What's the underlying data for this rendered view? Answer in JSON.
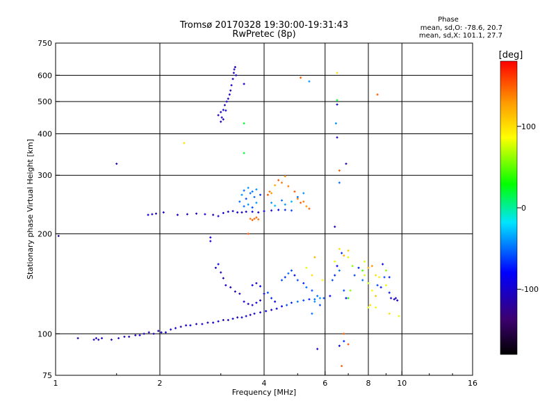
{
  "chart_data": {
    "type": "scatter",
    "title": "Tromsø 20170328 19:30:00-19:31:43",
    "subtitle": "RwPretec (8p)",
    "xlabel": "Frequency [MHz]",
    "ylabel": "Stationary phase Virtual Height [km]",
    "x_scale": "log",
    "y_scale": "log",
    "xlim": [
      1,
      16
    ],
    "ylim": [
      75,
      750
    ],
    "x_ticks": [
      {
        "v": 1,
        "label": "1"
      },
      {
        "v": 2,
        "label": "2"
      },
      {
        "v": 4,
        "label": "4"
      },
      {
        "v": 6,
        "label": "6"
      },
      {
        "v": 8,
        "label": "8"
      },
      {
        "v": 10,
        "label": "10"
      },
      {
        "v": 16,
        "label": "16"
      }
    ],
    "x_gridlines": [
      2,
      4,
      6,
      8,
      10
    ],
    "y_ticks": [
      {
        "v": 75,
        "label": "75"
      },
      {
        "v": 100,
        "label": "100"
      },
      {
        "v": 200,
        "label": "200"
      },
      {
        "v": 300,
        "label": "300"
      },
      {
        "v": 400,
        "label": "400"
      },
      {
        "v": 500,
        "label": "500"
      },
      {
        "v": 600,
        "label": "600"
      },
      {
        "v": 750,
        "label": "750"
      }
    ],
    "y_gridlines": [
      100,
      200,
      300,
      400,
      500,
      600
    ],
    "grid": true,
    "legend": {
      "phase_label": "Phase",
      "line_o": "mean, sd,O: -78.6, 20.7",
      "line_x": "mean, sd,X: 101.1, 27.7"
    },
    "colorbar": {
      "label": "[deg]",
      "range": [
        -180,
        180
      ],
      "ticks": [
        {
          "v": 100,
          "label": "100"
        },
        {
          "v": 0,
          "label": "0"
        },
        {
          "v": -100,
          "label": "-100"
        }
      ],
      "colors": [
        "#000000",
        "#4b0082",
        "#0000ff",
        "#00ffff",
        "#00ff00",
        "#ffff00",
        "#ff8000",
        "#ff0000"
      ]
    },
    "points": [
      [
        1.02,
        197,
        -110
      ],
      [
        1.16,
        97,
        -110
      ],
      [
        1.29,
        96,
        -110
      ],
      [
        1.31,
        97,
        -100
      ],
      [
        1.33,
        96,
        -110
      ],
      [
        1.36,
        97,
        -100
      ],
      [
        1.45,
        96,
        -110
      ],
      [
        1.52,
        97,
        -100
      ],
      [
        1.58,
        98,
        -110
      ],
      [
        1.63,
        98,
        -100
      ],
      [
        1.7,
        99,
        -110
      ],
      [
        1.75,
        99,
        -100
      ],
      [
        1.8,
        100,
        -110
      ],
      [
        1.86,
        101,
        -100
      ],
      [
        1.92,
        100,
        -110
      ],
      [
        1.98,
        102,
        -110
      ],
      [
        2.02,
        101,
        -100
      ],
      [
        2.08,
        101,
        -100
      ],
      [
        2.15,
        103,
        -90
      ],
      [
        2.22,
        104,
        -100
      ],
      [
        2.3,
        105,
        -110
      ],
      [
        2.38,
        106,
        -100
      ],
      [
        2.45,
        106,
        -90
      ],
      [
        2.55,
        107,
        -110
      ],
      [
        2.65,
        107,
        -100
      ],
      [
        2.75,
        108,
        -110
      ],
      [
        2.85,
        108,
        -100
      ],
      [
        2.95,
        109,
        -90
      ],
      [
        3.05,
        110,
        -110
      ],
      [
        3.15,
        110,
        -100
      ],
      [
        3.25,
        111,
        -100
      ],
      [
        3.35,
        112,
        -110
      ],
      [
        3.45,
        112,
        -90
      ],
      [
        3.55,
        113,
        -100
      ],
      [
        3.65,
        114,
        -110
      ],
      [
        3.75,
        115,
        -100
      ],
      [
        3.9,
        116,
        -100
      ],
      [
        4.05,
        117,
        -90
      ],
      [
        4.2,
        118,
        -100
      ],
      [
        4.35,
        119,
        -90
      ],
      [
        4.5,
        121,
        -80
      ],
      [
        4.65,
        122,
        -60
      ],
      [
        4.8,
        124,
        -70
      ],
      [
        5.0,
        125,
        -50
      ],
      [
        5.2,
        126,
        -60
      ],
      [
        5.4,
        127,
        -70
      ],
      [
        5.6,
        127,
        -50
      ],
      [
        5.8,
        128,
        -40
      ],
      [
        5.95,
        128,
        -60
      ],
      [
        1.85,
        228,
        -100
      ],
      [
        1.9,
        229,
        -100
      ],
      [
        1.95,
        230,
        -110
      ],
      [
        2.05,
        232,
        -100
      ],
      [
        2.25,
        228,
        -100
      ],
      [
        2.4,
        229,
        -110
      ],
      [
        2.55,
        230,
        -100
      ],
      [
        2.7,
        229,
        -100
      ],
      [
        2.85,
        228,
        -110
      ],
      [
        2.95,
        226,
        -100
      ],
      [
        3.05,
        231,
        -100
      ],
      [
        3.15,
        233,
        -100
      ],
      [
        3.25,
        234,
        -110
      ],
      [
        3.35,
        232,
        -90
      ],
      [
        3.45,
        232,
        -100
      ],
      [
        3.55,
        233,
        -100
      ],
      [
        3.7,
        233,
        -90
      ],
      [
        3.85,
        232,
        -100
      ],
      [
        4.0,
        234,
        -90
      ],
      [
        4.2,
        235,
        -100
      ],
      [
        4.4,
        236,
        -90
      ],
      [
        4.6,
        236,
        -70
      ],
      [
        4.8,
        235,
        -60
      ],
      [
        3.4,
        250,
        -50
      ],
      [
        3.45,
        262,
        -40
      ],
      [
        3.5,
        270,
        -50
      ],
      [
        3.55,
        255,
        -60
      ],
      [
        3.6,
        245,
        -40
      ],
      [
        3.65,
        265,
        -50
      ],
      [
        3.7,
        240,
        -60
      ],
      [
        3.75,
        258,
        -50
      ],
      [
        3.8,
        248,
        -40
      ],
      [
        3.9,
        262,
        -60
      ],
      [
        3.5,
        242,
        -50
      ],
      [
        3.6,
        275,
        -40
      ],
      [
        3.7,
        268,
        -50
      ],
      [
        3.8,
        272,
        -40
      ],
      [
        3.65,
        222,
        140
      ],
      [
        3.7,
        220,
        150
      ],
      [
        3.75,
        222,
        145
      ],
      [
        3.8,
        224,
        150
      ],
      [
        3.85,
        221,
        140
      ],
      [
        4.1,
        262,
        150
      ],
      [
        4.15,
        268,
        140
      ],
      [
        4.2,
        265,
        130
      ],
      [
        4.3,
        280,
        120
      ],
      [
        4.4,
        290,
        150
      ],
      [
        4.5,
        285,
        140
      ],
      [
        4.6,
        298,
        130
      ],
      [
        4.7,
        278,
        140
      ],
      [
        4.9,
        268,
        150
      ],
      [
        5.0,
        255,
        140
      ],
      [
        5.1,
        248,
        150
      ],
      [
        5.2,
        250,
        140
      ],
      [
        5.3,
        242,
        130
      ],
      [
        5.4,
        238,
        150
      ],
      [
        4.2,
        248,
        -40
      ],
      [
        4.3,
        243,
        -30
      ],
      [
        4.5,
        252,
        -50
      ],
      [
        4.6,
        245,
        -40
      ],
      [
        4.8,
        250,
        -30
      ],
      [
        5.0,
        258,
        -50
      ],
      [
        5.2,
        265,
        -40
      ],
      [
        2.95,
        455,
        -110
      ],
      [
        3.0,
        465,
        -100
      ],
      [
        3.02,
        448,
        -110
      ],
      [
        3.05,
        472,
        -100
      ],
      [
        3.08,
        488,
        -110
      ],
      [
        3.12,
        500,
        -100
      ],
      [
        3.15,
        510,
        -110
      ],
      [
        3.18,
        525,
        -100
      ],
      [
        3.2,
        540,
        -110
      ],
      [
        3.22,
        560,
        -100
      ],
      [
        3.25,
        585,
        -110
      ],
      [
        3.27,
        610,
        -100
      ],
      [
        3.28,
        625,
        -110
      ],
      [
        3.3,
        635,
        -100
      ],
      [
        3.32,
        600,
        -100
      ],
      [
        3.0,
        435,
        -110
      ],
      [
        3.05,
        442,
        -110
      ],
      [
        3.1,
        470,
        -100
      ],
      [
        3.0,
        153,
        -100
      ],
      [
        3.05,
        147,
        -110
      ],
      [
        3.1,
        140,
        -100
      ],
      [
        3.2,
        138,
        -110
      ],
      [
        3.3,
        134,
        -100
      ],
      [
        3.4,
        132,
        -110
      ],
      [
        2.9,
        158,
        -100
      ],
      [
        2.95,
        162,
        -90
      ],
      [
        3.5,
        125,
        -100
      ],
      [
        3.6,
        123,
        -110
      ],
      [
        3.7,
        122,
        -100
      ],
      [
        3.8,
        124,
        -90
      ],
      [
        3.9,
        126,
        -100
      ],
      [
        3.7,
        140,
        -90
      ],
      [
        3.8,
        142,
        -100
      ],
      [
        3.9,
        139,
        -80
      ],
      [
        4.0,
        132,
        -90
      ],
      [
        4.1,
        133,
        -60
      ],
      [
        4.2,
        128,
        -70
      ],
      [
        4.3,
        125,
        -80
      ],
      [
        4.5,
        145,
        -60
      ],
      [
        4.6,
        148,
        -70
      ],
      [
        4.7,
        152,
        -50
      ],
      [
        4.8,
        155,
        -60
      ],
      [
        4.9,
        150,
        -80
      ],
      [
        5.0,
        145,
        -60
      ],
      [
        5.2,
        142,
        -70
      ],
      [
        5.3,
        138,
        -50
      ],
      [
        5.5,
        135,
        -60
      ],
      [
        5.6,
        125,
        -40
      ],
      [
        5.7,
        130,
        -50
      ],
      [
        5.8,
        122,
        -60
      ],
      [
        5.3,
        158,
        80
      ],
      [
        5.5,
        150,
        100
      ],
      [
        5.6,
        170,
        120
      ],
      [
        5.9,
        145,
        90
      ],
      [
        6.2,
        130,
        -90
      ],
      [
        6.3,
        145,
        -60
      ],
      [
        6.4,
        150,
        -70
      ],
      [
        6.5,
        160,
        -80
      ],
      [
        6.6,
        155,
        -50
      ],
      [
        6.7,
        175,
        -70
      ],
      [
        6.8,
        135,
        -60
      ],
      [
        6.9,
        128,
        -80
      ],
      [
        7.0,
        128,
        40
      ],
      [
        7.1,
        135,
        60
      ],
      [
        6.4,
        165,
        80
      ],
      [
        6.6,
        180,
        100
      ],
      [
        6.8,
        172,
        120
      ],
      [
        7.0,
        170,
        80
      ],
      [
        7.2,
        160,
        60
      ],
      [
        7.0,
        178,
        110
      ],
      [
        7.3,
        150,
        -60
      ],
      [
        7.5,
        158,
        -70
      ],
      [
        7.7,
        145,
        -50
      ],
      [
        7.8,
        150,
        80
      ],
      [
        8.0,
        142,
        70
      ],
      [
        8.2,
        135,
        90
      ],
      [
        8.4,
        130,
        110
      ],
      [
        8.5,
        140,
        -60
      ],
      [
        8.7,
        138,
        -70
      ],
      [
        8.9,
        148,
        -60
      ],
      [
        9.0,
        140,
        80
      ],
      [
        9.2,
        133,
        -70
      ],
      [
        9.3,
        128,
        -100
      ],
      [
        9.5,
        127,
        -110
      ],
      [
        9.6,
        128,
        -100
      ],
      [
        9.7,
        126,
        -100
      ],
      [
        7.7,
        155,
        50
      ],
      [
        7.8,
        165,
        80
      ],
      [
        8.0,
        158,
        120
      ],
      [
        8.2,
        160,
        130
      ],
      [
        8.4,
        150,
        100
      ],
      [
        8.6,
        148,
        90
      ],
      [
        8.8,
        162,
        -80
      ],
      [
        9.0,
        155,
        60
      ],
      [
        9.2,
        148,
        -70
      ],
      [
        8.0,
        120,
        80
      ],
      [
        8.1,
        122,
        100
      ],
      [
        8.4,
        120,
        90
      ],
      [
        6.5,
        610,
        100
      ],
      [
        6.5,
        505,
        20
      ],
      [
        6.5,
        490,
        -100
      ],
      [
        6.45,
        430,
        -40
      ],
      [
        6.5,
        390,
        -110
      ],
      [
        6.6,
        310,
        150
      ],
      [
        6.6,
        285,
        -50
      ],
      [
        6.9,
        325,
        -110
      ],
      [
        6.4,
        210,
        -100
      ],
      [
        8.5,
        525,
        150
      ],
      [
        5.1,
        590,
        150
      ],
      [
        5.4,
        575,
        -40
      ],
      [
        3.5,
        565,
        -100
      ],
      [
        3.5,
        430,
        20
      ],
      [
        3.5,
        350,
        20
      ],
      [
        1.5,
        325,
        -110
      ],
      [
        2.35,
        375,
        100
      ],
      [
        3.6,
        200,
        150
      ],
      [
        2.8,
        195,
        -100
      ],
      [
        2.8,
        190,
        -100
      ],
      [
        6.6,
        92,
        -90
      ],
      [
        6.8,
        95,
        -70
      ],
      [
        7.0,
        93,
        150
      ],
      [
        6.8,
        100,
        150
      ],
      [
        6.7,
        80,
        150
      ],
      [
        9.2,
        115,
        100
      ],
      [
        9.8,
        113,
        80
      ],
      [
        5.7,
        90,
        -100
      ],
      [
        5.5,
        115,
        -50
      ]
    ]
  }
}
